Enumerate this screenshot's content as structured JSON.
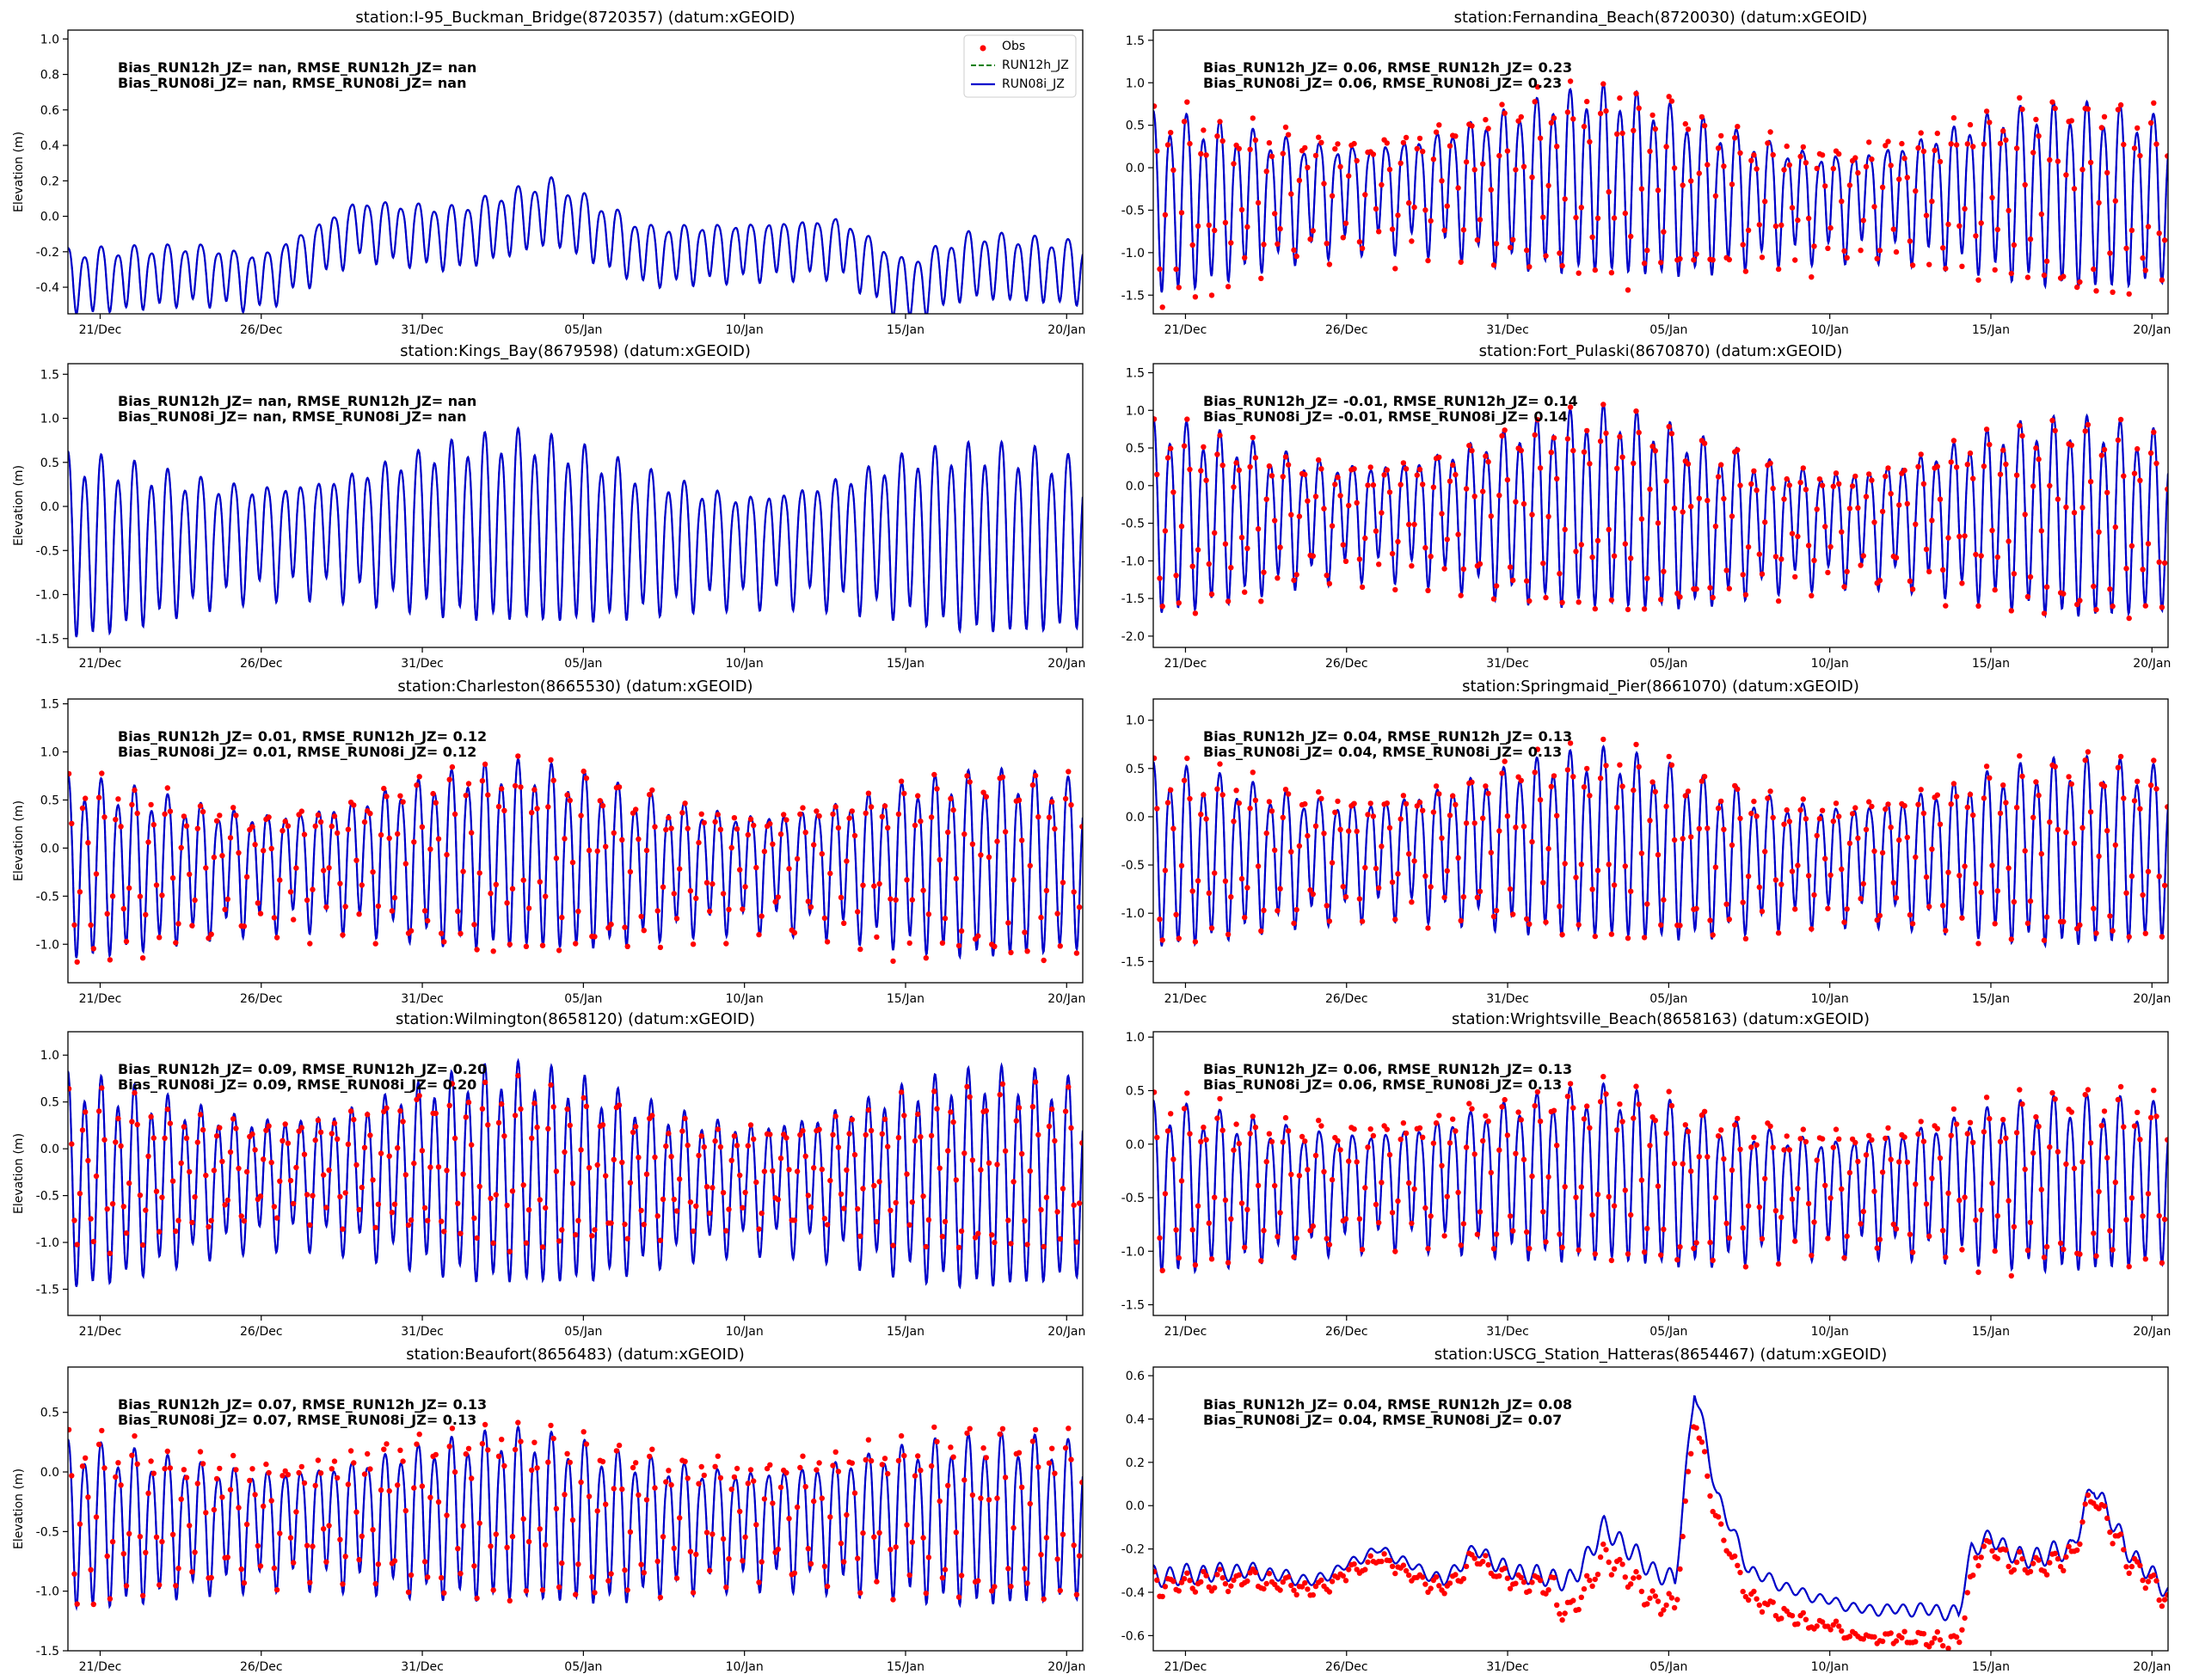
{
  "figure": {
    "x_ticks": [
      "21/Dec",
      "26/Dec",
      "31/Dec",
      "05/Jan",
      "10/Jan",
      "15/Jan",
      "20/Jan"
    ]
  },
  "colors": {
    "obs": "#ff0000",
    "run12": "#008000",
    "run08": "#0000cc",
    "axis": "#000000"
  },
  "legend": {
    "entries": [
      "Obs",
      "RUN12h_JZ",
      "RUN08i_JZ"
    ],
    "placement": "top-right",
    "panel": 0
  },
  "chart_data": [
    {
      "type": "line",
      "title": "station:I-95_Buckman_Bridge(8720357) (datum:xGEOID)",
      "ylabel": "Elevation (m)",
      "ylim": [
        -0.55,
        1.05
      ],
      "yticks": [
        "-0.4",
        "-0.2",
        "0.0",
        "0.2",
        "0.4",
        "0.6",
        "0.8",
        "1.0"
      ],
      "ytick_values": [
        -0.4,
        -0.2,
        0,
        0.2,
        0.4,
        0.6,
        0.8,
        1.0
      ],
      "stats": [
        "Bias_RUN12h_JZ=   nan, RMSE_RUN12h_JZ=   nan",
        "Bias_RUN08i_JZ=   nan, RMSE_RUN08i_JZ=   nan"
      ],
      "x_range_days": [
        0,
        31.5
      ],
      "tide": {
        "mean": -0.1,
        "amp": 0.16,
        "spring": 0.08,
        "low_bias": 0.03,
        "trend": [
          [
            0,
            -0.25
          ],
          [
            4,
            -0.2
          ],
          [
            6,
            -0.25
          ],
          [
            9,
            0.05
          ],
          [
            12,
            0.0
          ],
          [
            15,
            0.15
          ],
          [
            18,
            -0.1
          ],
          [
            24,
            -0.05
          ],
          [
            26,
            -0.3
          ],
          [
            28,
            -0.15
          ],
          [
            31.5,
            -0.2
          ]
        ]
      },
      "obs": {
        "present": false
      }
    },
    {
      "type": "line",
      "title": "station:Fernandina_Beach(8720030) (datum:xGEOID)",
      "ylabel": "",
      "ylim": [
        -1.72,
        1.62
      ],
      "yticks": [
        "-1.5",
        "-1.0",
        "-0.5",
        "0.0",
        "0.5",
        "1.0",
        "1.5"
      ],
      "ytick_values": [
        -1.5,
        -1.0,
        -0.5,
        0,
        0.5,
        1.0,
        1.5
      ],
      "stats": [
        "Bias_RUN12h_JZ=  0.06, RMSE_RUN12h_JZ=  0.23",
        "Bias_RUN08i_JZ=  0.06, RMSE_RUN08i_JZ=  0.23"
      ],
      "x_range_days": [
        0,
        31.5
      ],
      "tide": {
        "mean": -0.25,
        "amp": 0.78,
        "spring": 0.3,
        "low_bias": 0.12,
        "trend": [
          [
            0,
            -0.1
          ],
          [
            6,
            0.0
          ],
          [
            10,
            0.1
          ],
          [
            14,
            0.2
          ],
          [
            17,
            0.0
          ],
          [
            21,
            -0.1
          ],
          [
            26,
            0.05
          ],
          [
            31.5,
            -0.05
          ]
        ]
      },
      "obs": {
        "present": true,
        "offset": 0.06,
        "noise": 0.2,
        "low_extra": 0.35
      }
    },
    {
      "type": "line",
      "title": "station:Kings_Bay(8679598) (datum:xGEOID)",
      "ylabel": "Elevation (m)",
      "ylim": [
        -1.6,
        1.62
      ],
      "yticks": [
        "-1.5",
        "-1.0",
        "-0.5",
        "0.0",
        "0.5",
        "1.0",
        "1.5"
      ],
      "ytick_values": [
        -1.5,
        -1.0,
        -0.5,
        0,
        0.5,
        1.0,
        1.5
      ],
      "stats": [
        "Bias_RUN12h_JZ=   nan, RMSE_RUN12h_JZ=   nan",
        "Bias_RUN08i_JZ=   nan, RMSE_RUN08i_JZ=   nan"
      ],
      "x_range_days": [
        0,
        31.5
      ],
      "tide": {
        "mean": -0.3,
        "amp": 0.78,
        "spring": 0.28,
        "low_bias": 0.1,
        "trend": [
          [
            0,
            -0.1
          ],
          [
            6,
            0.0
          ],
          [
            10,
            0.1
          ],
          [
            14,
            0.15
          ],
          [
            17,
            0.0
          ],
          [
            21,
            -0.1
          ],
          [
            26,
            0.05
          ],
          [
            31.5,
            -0.05
          ]
        ]
      },
      "obs": {
        "present": false
      }
    },
    {
      "type": "line",
      "title": "station:Fort_Pulaski(8670870) (datum:xGEOID)",
      "ylabel": "",
      "ylim": [
        -2.15,
        1.62
      ],
      "yticks": [
        "-2.0",
        "-1.5",
        "-1.0",
        "-0.5",
        "0.0",
        "0.5",
        "1.0",
        "1.5"
      ],
      "ytick_values": [
        -2.0,
        -1.5,
        -1.0,
        -0.5,
        0,
        0.5,
        1.0,
        1.5
      ],
      "stats": [
        "Bias_RUN12h_JZ= -0.01, RMSE_RUN12h_JZ=  0.14",
        "Bias_RUN08i_JZ= -0.01, RMSE_RUN08i_JZ=  0.14"
      ],
      "x_range_days": [
        0,
        31.5
      ],
      "tide": {
        "mean": -0.35,
        "amp": 0.95,
        "spring": 0.3,
        "low_bias": 0.12,
        "trend": [
          [
            0,
            0.0
          ],
          [
            6,
            0.0
          ],
          [
            10,
            0.05
          ],
          [
            14,
            0.15
          ],
          [
            17,
            -0.05
          ],
          [
            21,
            -0.1
          ],
          [
            26,
            0.05
          ],
          [
            31.5,
            -0.05
          ]
        ]
      },
      "obs": {
        "present": true,
        "offset": -0.01,
        "noise": 0.13,
        "low_extra": 0.1
      }
    },
    {
      "type": "line",
      "title": "station:Charleston(8665530) (datum:xGEOID)",
      "ylabel": "Elevation (m)",
      "ylim": [
        -1.4,
        1.55
      ],
      "yticks": [
        "-1.0",
        "-0.5",
        "0.0",
        "0.5",
        "1.0",
        "1.5"
      ],
      "ytick_values": [
        -1.0,
        -0.5,
        0,
        0.5,
        1.0,
        1.5
      ],
      "stats": [
        "Bias_RUN12h_JZ=  0.01, RMSE_RUN12h_JZ=  0.12",
        "Bias_RUN08i_JZ=  0.01, RMSE_RUN08i_JZ=  0.12"
      ],
      "x_range_days": [
        0,
        31.5
      ],
      "tide": {
        "mean": -0.1,
        "amp": 0.72,
        "spring": 0.25,
        "low_bias": 0.1,
        "trend": [
          [
            0,
            -0.05
          ],
          [
            6,
            -0.05
          ],
          [
            10,
            0.05
          ],
          [
            14,
            0.1
          ],
          [
            17,
            0.0
          ],
          [
            21,
            -0.05
          ],
          [
            26,
            0.0
          ],
          [
            31.5,
            0.0
          ]
        ]
      },
      "obs": {
        "present": true,
        "offset": 0.01,
        "noise": 0.12,
        "low_extra": 0.12
      }
    },
    {
      "type": "line",
      "title": "station:Springmaid_Pier(8661070) (datum:xGEOID)",
      "ylabel": "",
      "ylim": [
        -1.72,
        1.22
      ],
      "yticks": [
        "-1.5",
        "-1.0",
        "-0.5",
        "0.0",
        "0.5",
        "1.0"
      ],
      "ytick_values": [
        -1.5,
        -1.0,
        -0.5,
        0,
        0.5,
        1.0
      ],
      "stats": [
        "Bias_RUN12h_JZ=  0.04, RMSE_RUN12h_JZ=  0.13",
        "Bias_RUN08i_JZ=  0.04, RMSE_RUN08i_JZ=  0.13"
      ],
      "x_range_days": [
        0,
        31.5
      ],
      "tide": {
        "mean": -0.3,
        "amp": 0.72,
        "spring": 0.25,
        "low_bias": 0.1,
        "trend": [
          [
            0,
            -0.05
          ],
          [
            6,
            -0.05
          ],
          [
            10,
            0.05
          ],
          [
            14,
            0.1
          ],
          [
            17,
            -0.05
          ],
          [
            21,
            -0.1
          ],
          [
            26,
            0.0
          ],
          [
            31.5,
            0.0
          ]
        ]
      },
      "obs": {
        "present": true,
        "offset": 0.04,
        "noise": 0.12,
        "low_extra": 0.1
      }
    },
    {
      "type": "line",
      "title": "station:Wilmington(8658120) (datum:xGEOID)",
      "ylabel": "Elevation (m)",
      "ylim": [
        -1.78,
        1.25
      ],
      "yticks": [
        "-1.5",
        "-1.0",
        "-0.5",
        "0.0",
        "0.5",
        "1.0"
      ],
      "ytick_values": [
        -1.5,
        -1.0,
        -0.5,
        0,
        0.5,
        1.0
      ],
      "stats": [
        "Bias_RUN12h_JZ=  0.09, RMSE_RUN12h_JZ=  0.20",
        "Bias_RUN08i_JZ=  0.09, RMSE_RUN08i_JZ=  0.20"
      ],
      "x_range_days": [
        0,
        31.5
      ],
      "tide": {
        "mean": -0.3,
        "amp": 0.85,
        "spring": 0.28,
        "low_bias": 0.05,
        "trend": [
          [
            0,
            -0.05
          ],
          [
            6,
            0.0
          ],
          [
            10,
            0.05
          ],
          [
            14,
            0.05
          ],
          [
            17,
            -0.05
          ],
          [
            21,
            -0.05
          ],
          [
            26,
            0.0
          ],
          [
            31.5,
            0.0
          ]
        ]
      },
      "obs": {
        "present": true,
        "offset": 0.09,
        "noise": 0.1,
        "low_extra": -0.1,
        "shrink": 0.78
      }
    },
    {
      "type": "line",
      "title": "station:Wrightsville_Beach(8658163) (datum:xGEOID)",
      "ylabel": "",
      "ylim": [
        -1.6,
        1.05
      ],
      "yticks": [
        "-1.5",
        "-1.0",
        "-0.5",
        "0.0",
        "0.5",
        "1.0"
      ],
      "ytick_values": [
        -1.5,
        -1.0,
        -0.5,
        0,
        0.5,
        1.0
      ],
      "stats": [
        "Bias_RUN12h_JZ=  0.06, RMSE_RUN12h_JZ=  0.13",
        "Bias_RUN08i_JZ=  0.06, RMSE_RUN08i_JZ=  0.13"
      ],
      "x_range_days": [
        0,
        31.5
      ],
      "tide": {
        "mean": -0.3,
        "amp": 0.62,
        "spring": 0.22,
        "low_bias": 0.1,
        "trend": [
          [
            0,
            -0.05
          ],
          [
            6,
            -0.05
          ],
          [
            10,
            0.05
          ],
          [
            14,
            0.1
          ],
          [
            17,
            -0.05
          ],
          [
            21,
            -0.1
          ],
          [
            26,
            0.0
          ],
          [
            31.5,
            0.0
          ]
        ]
      },
      "obs": {
        "present": true,
        "offset": 0.06,
        "noise": 0.12,
        "low_extra": 0.12
      }
    },
    {
      "type": "line",
      "title": "station:Beaufort(8656483) (datum:xGEOID)",
      "ylabel": "Elevation (m)",
      "ylim": [
        -1.5,
        0.88
      ],
      "yticks": [
        "-1.5",
        "-1.0",
        "-0.5",
        "0.0",
        "0.5"
      ],
      "ytick_values": [
        -1.5,
        -1.0,
        -0.5,
        0,
        0.5
      ],
      "stats": [
        "Bias_RUN12h_JZ=  0.07, RMSE_RUN12h_JZ=  0.13",
        "Bias_RUN08i_JZ=  0.07, RMSE_RUN08i_JZ=  0.13"
      ],
      "x_range_days": [
        0,
        31.5
      ],
      "tide": {
        "mean": -0.35,
        "amp": 0.55,
        "spring": 0.2,
        "low_bias": 0.08,
        "trend": [
          [
            0,
            -0.05
          ],
          [
            6,
            -0.05
          ],
          [
            10,
            0.0
          ],
          [
            14,
            0.05
          ],
          [
            17,
            -0.05
          ],
          [
            21,
            -0.05
          ],
          [
            26,
            0.0
          ],
          [
            31.5,
            0.0
          ]
        ]
      },
      "obs": {
        "present": true,
        "offset": 0.07,
        "noise": 0.1,
        "low_extra": 0.1
      }
    },
    {
      "type": "line",
      "title": "station:USCG_Station_Hatteras(8654467) (datum:xGEOID)",
      "ylabel": "",
      "ylim": [
        -0.67,
        0.64
      ],
      "yticks": [
        "-0.6",
        "-0.4",
        "-0.2",
        "0.0",
        "0.2",
        "0.4",
        "0.6"
      ],
      "ytick_values": [
        -0.6,
        -0.4,
        -0.2,
        0,
        0.2,
        0.4,
        0.6
      ],
      "stats": [
        "Bias_RUN12h_JZ=  0.04, RMSE_RUN12h_JZ=  0.08",
        "Bias_RUN08i_JZ=  0.04, RMSE_RUN08i_JZ=  0.07"
      ],
      "x_range_days": [
        0,
        31.5
      ],
      "tide": {
        "mean": 0.0,
        "amp": 0.035,
        "spring": 0.4,
        "low_bias": 0.0,
        "trend": [
          [
            0,
            -0.33
          ],
          [
            3,
            -0.3
          ],
          [
            5,
            -0.35
          ],
          [
            7,
            -0.2
          ],
          [
            9,
            -0.35
          ],
          [
            10,
            -0.2
          ],
          [
            11,
            -0.3
          ],
          [
            13,
            -0.35
          ],
          [
            14,
            -0.1
          ],
          [
            15.5,
            -0.3
          ],
          [
            16.2,
            -0.35
          ],
          [
            16.8,
            0.55
          ],
          [
            17.5,
            0.05
          ],
          [
            18.5,
            -0.3
          ],
          [
            20,
            -0.4
          ],
          [
            22,
            -0.48
          ],
          [
            24,
            -0.48
          ],
          [
            25,
            -0.5
          ],
          [
            25.4,
            -0.2
          ],
          [
            26,
            -0.15
          ],
          [
            27,
            -0.25
          ],
          [
            28.5,
            -0.2
          ],
          [
            29.2,
            0.1
          ],
          [
            30.2,
            -0.2
          ],
          [
            31.5,
            -0.4
          ]
        ]
      },
      "obs": {
        "present": true,
        "offset": -0.04,
        "noise": 0.035,
        "low_extra": 0.0,
        "dip": [
          [
            13.5,
            -0.12
          ],
          [
            21,
            -0.1
          ],
          [
            23.5,
            -0.12
          ],
          [
            24.5,
            -0.12
          ]
        ]
      }
    }
  ]
}
